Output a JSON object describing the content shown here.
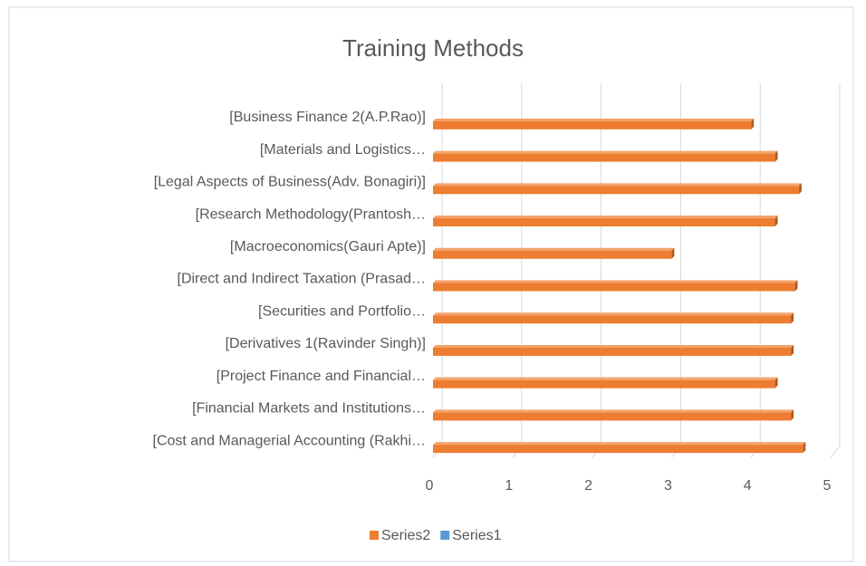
{
  "chart_data": {
    "type": "bar",
    "orientation": "horizontal",
    "title": "Training Methods",
    "categories": [
      "[Business Finance 2(A.P.Rao)]",
      "[Materials and Logistics…",
      "[Legal Aspects of Business(Adv. Bonagiri)]",
      "[Research Methodology(Prantosh…",
      "[Macroeconomics(Gauri Apte)]",
      "[Direct and Indirect Taxation (Prasad…",
      "[Securities and Portfolio…",
      "[Derivatives 1(Ravinder Singh)]",
      "[Project Finance and Financial…",
      "[Financial Markets and Institutions…",
      "[Cost and Managerial Accounting  (Rakhi…"
    ],
    "series": [
      {
        "name": "Series2",
        "color": "#ed7d31",
        "values": [
          4.0,
          4.3,
          4.6,
          4.3,
          3.0,
          4.55,
          4.5,
          4.5,
          4.3,
          4.5,
          4.65
        ]
      },
      {
        "name": "Series1",
        "color": "#5b9bd5",
        "values": [
          null,
          null,
          null,
          null,
          null,
          null,
          null,
          null,
          null,
          null,
          null
        ]
      }
    ],
    "xlim": [
      0,
      5
    ],
    "xticks": [
      0,
      1,
      2,
      3,
      4,
      5
    ],
    "grid": true,
    "legend": "bottom"
  }
}
